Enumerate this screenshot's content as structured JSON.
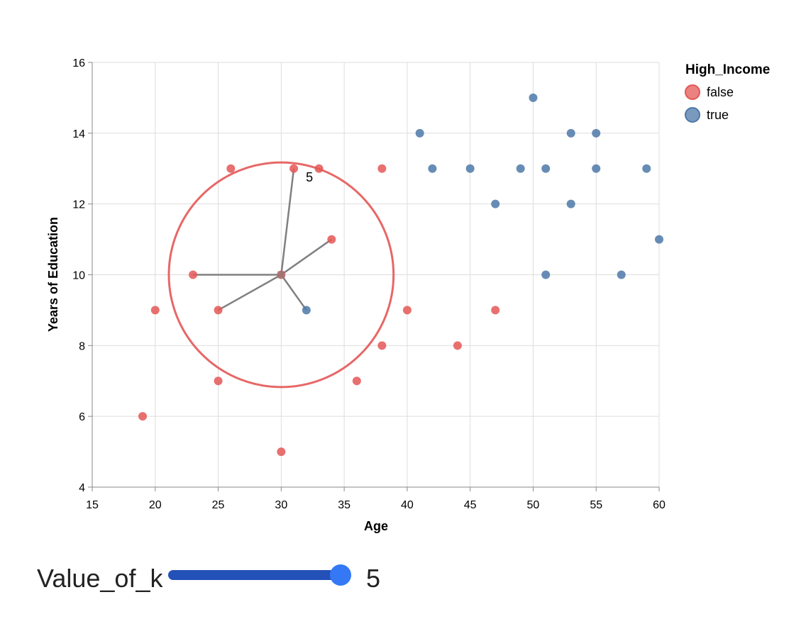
{
  "chart_data": {
    "type": "scatter",
    "x_label": "Age",
    "y_label": "Years of Education",
    "xlim": [
      15,
      60
    ],
    "ylim": [
      4,
      16
    ],
    "xticks": [
      15,
      20,
      25,
      30,
      35,
      40,
      45,
      50,
      55,
      60
    ],
    "yticks": [
      4,
      6,
      8,
      10,
      12,
      14,
      16
    ],
    "grid": true,
    "legend_title": "High_Income",
    "series": [
      {
        "name": "false",
        "color": "#e45756",
        "x": [
          26,
          31,
          33,
          38,
          34,
          23,
          20,
          25,
          40,
          47,
          38,
          44,
          25,
          36,
          19,
          30
        ],
        "values": [
          13,
          13,
          13,
          13,
          11,
          10,
          9,
          9,
          9,
          9,
          8,
          8,
          7,
          7,
          6,
          5
        ]
      },
      {
        "name": "true",
        "color": "#4c78a8",
        "x": [
          41,
          50,
          53,
          55,
          42,
          45,
          49,
          51,
          55,
          59,
          47,
          53,
          60,
          51,
          57,
          32
        ],
        "values": [
          14,
          15,
          14,
          14,
          13,
          13,
          13,
          13,
          13,
          13,
          12,
          12,
          11,
          10,
          10,
          9
        ]
      }
    ],
    "query": {
      "x": 30,
      "y": 10
    },
    "slider": {
      "label": "Value_of_k",
      "value": 5
    }
  }
}
